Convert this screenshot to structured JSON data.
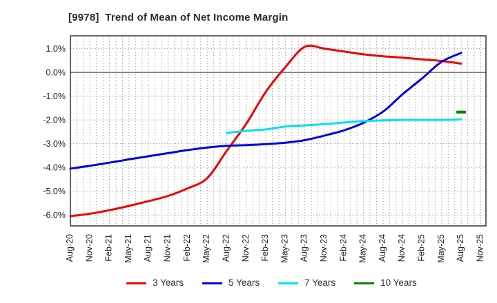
{
  "title": {
    "text": "[9978]  Trend of Mean of Net Income Margin"
  },
  "chart_data": {
    "type": "line",
    "title": "[9978]  Trend of Mean of Net Income Margin",
    "categories": [
      "Aug-20",
      "Nov-20",
      "Feb-21",
      "May-21",
      "Aug-21",
      "Nov-21",
      "Feb-22",
      "May-22",
      "Aug-22",
      "Nov-22",
      "Feb-23",
      "May-23",
      "Aug-23",
      "Nov-23",
      "Feb-24",
      "May-24",
      "Aug-24",
      "Nov-24",
      "Feb-25",
      "May-25",
      "Aug-25",
      "Nov-25"
    ],
    "series": [
      {
        "name": "3 Years",
        "color": "#ee0000",
        "values": [
          -6.05,
          -5.95,
          -5.8,
          -5.62,
          -5.42,
          -5.2,
          -4.88,
          -4.45,
          -3.3,
          -2.16,
          -0.82,
          0.22,
          1.08,
          1.0,
          0.88,
          0.76,
          0.68,
          0.62,
          0.55,
          0.48,
          0.37,
          null
        ]
      },
      {
        "name": "5 Years",
        "color": "#0000e0",
        "values": [
          -4.05,
          -3.93,
          -3.8,
          -3.66,
          -3.53,
          -3.4,
          -3.27,
          -3.16,
          -3.09,
          -3.06,
          -3.02,
          -2.96,
          -2.85,
          -2.66,
          -2.44,
          -2.12,
          -1.65,
          -0.92,
          -0.25,
          0.45,
          0.82,
          null
        ]
      },
      {
        "name": "7 Years",
        "color": "#00e1ea",
        "values": [
          null,
          null,
          null,
          null,
          null,
          null,
          null,
          null,
          -2.55,
          -2.46,
          -2.4,
          -2.28,
          -2.23,
          -2.18,
          -2.11,
          -2.05,
          -2.02,
          -2.0,
          -2.0,
          -2.0,
          -1.98,
          null
        ]
      },
      {
        "name": "10 Years",
        "color": "#008000",
        "values": [
          null,
          null,
          null,
          null,
          null,
          null,
          null,
          null,
          null,
          null,
          null,
          null,
          null,
          null,
          null,
          null,
          null,
          null,
          null,
          null,
          -1.67,
          null
        ]
      }
    ],
    "y_ticks": [
      {
        "value": 1.0,
        "label": "1.0%"
      },
      {
        "value": 0.0,
        "label": "0.0%"
      },
      {
        "value": -1.0,
        "label": "-1.0%"
      },
      {
        "value": -2.0,
        "label": "-2.0%"
      },
      {
        "value": -3.0,
        "label": "-3.0%"
      },
      {
        "value": -4.0,
        "label": "-4.0%"
      },
      {
        "value": -5.0,
        "label": "-5.0%"
      },
      {
        "value": -6.0,
        "label": "-6.0%"
      }
    ],
    "ylim": [
      -6.46,
      1.54
    ],
    "xlabel": "",
    "ylabel": "",
    "x_months_total": 63.8,
    "months_per_category": 3,
    "grid": "dotted gray, monthly vertical lines, 1% horizontal lines, solid line at 0%",
    "legend_position": "bottom"
  },
  "colors": {
    "axis_border": "#222222",
    "grid_dotted": "#999999",
    "zero_line": "#555555",
    "tick_text": "#222222",
    "title_text": "#2b2b2b"
  }
}
